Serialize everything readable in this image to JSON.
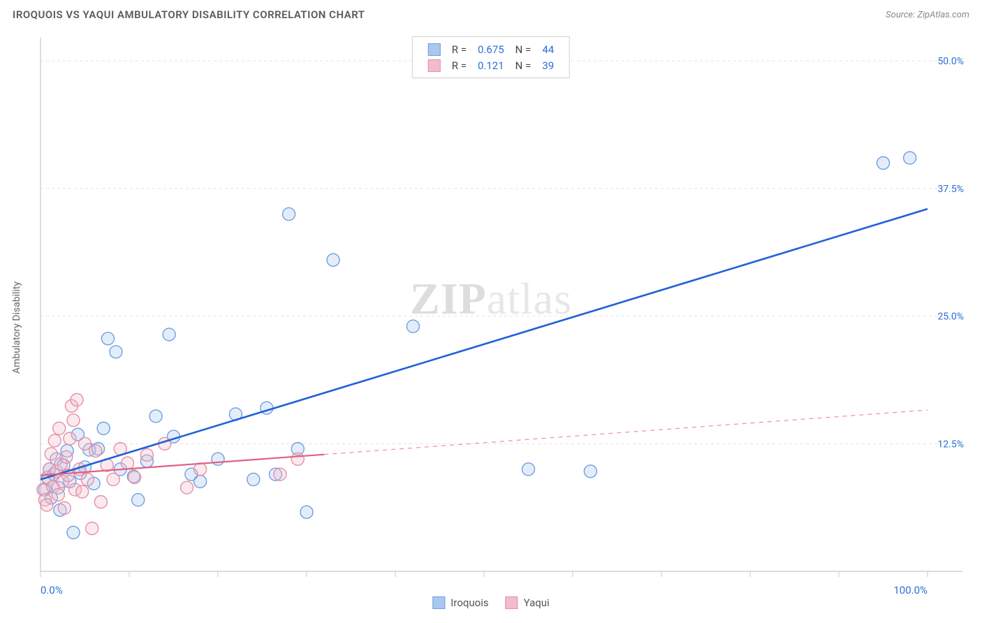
{
  "title": "IROQUOIS VS YAQUI AMBULATORY DISABILITY CORRELATION CHART",
  "source": "Source: ZipAtlas.com",
  "ylabel": "Ambulatory Disability",
  "watermark_zip": "ZIP",
  "watermark_atlas": "atlas",
  "chart": {
    "type": "scatter",
    "xlim": [
      0,
      100
    ],
    "ylim": [
      0,
      52
    ],
    "xticks": [
      0,
      10,
      20,
      30,
      40,
      50,
      60,
      70,
      80,
      90,
      100
    ],
    "yticks": [
      12.5,
      25.0,
      37.5,
      50.0
    ],
    "x_axis_labels": {
      "0": "0.0%",
      "100": "100.0%"
    },
    "y_axis_labels": {
      "12.5": "12.5%",
      "25.0": "25.0%",
      "37.5": "37.5%",
      "50.0": "50.0%"
    },
    "background_color": "#ffffff",
    "grid_color": "#e4e4e4",
    "axis_color": "#c8c8c8",
    "tick_color": "#c8c8c8",
    "label_color": "#2b6fd6",
    "marker_radius": 9,
    "marker_stroke_width": 1.4,
    "marker_fill_opacity": 0.32,
    "series": [
      {
        "name": "Iroquois",
        "color_stroke": "#6f9fe0",
        "color_fill": "#a9c8ef",
        "R": "0.675",
        "N": "44",
        "trend": {
          "x1": 0,
          "y1": 9.0,
          "x2": 100,
          "y2": 35.5,
          "solid_until_x": 100,
          "color": "#1f61d6",
          "width": 2.6
        },
        "points": [
          [
            0.5,
            8.0
          ],
          [
            0.8,
            9.2
          ],
          [
            1.0,
            10.0
          ],
          [
            1.2,
            7.2
          ],
          [
            1.5,
            9.5
          ],
          [
            1.8,
            11.0
          ],
          [
            2.0,
            8.2
          ],
          [
            2.2,
            6.0
          ],
          [
            2.6,
            10.4
          ],
          [
            3.0,
            11.8
          ],
          [
            3.3,
            8.8
          ],
          [
            3.7,
            3.8
          ],
          [
            4.2,
            13.4
          ],
          [
            4.5,
            9.6
          ],
          [
            5.0,
            10.2
          ],
          [
            5.5,
            11.9
          ],
          [
            6.0,
            8.6
          ],
          [
            6.5,
            12.0
          ],
          [
            7.1,
            14.0
          ],
          [
            7.6,
            22.8
          ],
          [
            8.5,
            21.5
          ],
          [
            9.0,
            10.0
          ],
          [
            10.5,
            9.3
          ],
          [
            11.0,
            7.0
          ],
          [
            12.0,
            10.8
          ],
          [
            13.0,
            15.2
          ],
          [
            14.5,
            23.2
          ],
          [
            15.0,
            13.2
          ],
          [
            17.0,
            9.5
          ],
          [
            18.0,
            8.8
          ],
          [
            20.0,
            11.0
          ],
          [
            22.0,
            15.4
          ],
          [
            24.0,
            9.0
          ],
          [
            25.5,
            16.0
          ],
          [
            26.5,
            9.5
          ],
          [
            28.0,
            35.0
          ],
          [
            29.0,
            12.0
          ],
          [
            30.0,
            5.8
          ],
          [
            33.0,
            30.5
          ],
          [
            42.0,
            24.0
          ],
          [
            55.0,
            10.0
          ],
          [
            62.0,
            9.8
          ],
          [
            95.0,
            40.0
          ],
          [
            98.0,
            40.5
          ]
        ]
      },
      {
        "name": "Yaqui",
        "color_stroke": "#e58fa8",
        "color_fill": "#f3bccb",
        "R": "0.121",
        "N": "39",
        "trend": {
          "x1": 0,
          "y1": 9.4,
          "x2": 100,
          "y2": 15.8,
          "solid_until_x": 32,
          "color": "#e0607f",
          "width": 2.2
        },
        "points": [
          [
            0.3,
            8.0
          ],
          [
            0.5,
            7.0
          ],
          [
            0.7,
            6.5
          ],
          [
            0.9,
            9.0
          ],
          [
            1.0,
            10.0
          ],
          [
            1.2,
            11.5
          ],
          [
            1.4,
            8.3
          ],
          [
            1.6,
            12.8
          ],
          [
            1.8,
            9.8
          ],
          [
            2.0,
            7.5
          ],
          [
            2.1,
            14.0
          ],
          [
            2.3,
            10.5
          ],
          [
            2.5,
            8.8
          ],
          [
            2.7,
            6.2
          ],
          [
            2.9,
            11.2
          ],
          [
            3.1,
            9.4
          ],
          [
            3.3,
            13.0
          ],
          [
            3.5,
            16.2
          ],
          [
            3.7,
            14.8
          ],
          [
            3.9,
            8.0
          ],
          [
            4.1,
            16.8
          ],
          [
            4.4,
            10.0
          ],
          [
            4.7,
            7.8
          ],
          [
            5.0,
            12.5
          ],
          [
            5.3,
            9.0
          ],
          [
            5.8,
            4.2
          ],
          [
            6.2,
            11.8
          ],
          [
            6.8,
            6.8
          ],
          [
            7.5,
            10.4
          ],
          [
            8.2,
            9.0
          ],
          [
            9.0,
            12.0
          ],
          [
            9.8,
            10.6
          ],
          [
            10.6,
            9.2
          ],
          [
            12.0,
            11.4
          ],
          [
            14.0,
            12.5
          ],
          [
            16.5,
            8.2
          ],
          [
            18.0,
            10.0
          ],
          [
            27.0,
            9.5
          ],
          [
            29.0,
            11.0
          ]
        ]
      }
    ]
  },
  "legend_top": {
    "rlabel": "R =",
    "nlabel": "N ="
  },
  "legend_bottom": {
    "s1": "Iroquois",
    "s2": "Yaqui"
  }
}
